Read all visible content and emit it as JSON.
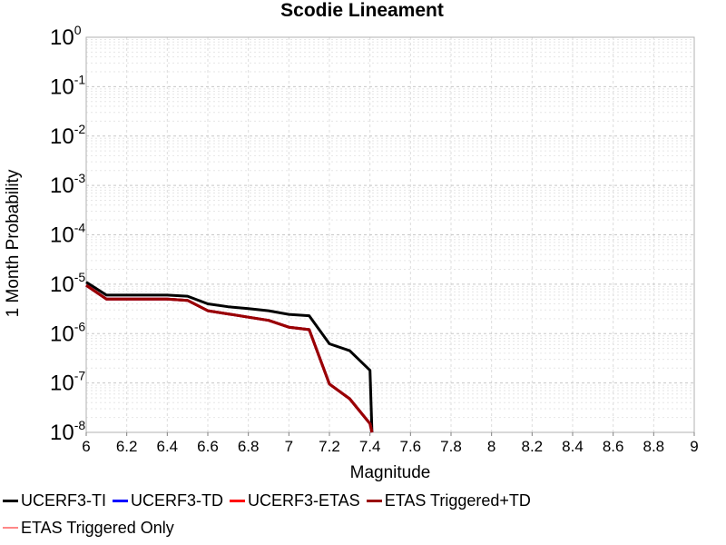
{
  "chart_data": {
    "type": "line",
    "title": "Scodie Lineament",
    "xlabel": "Magnitude",
    "ylabel": "1 Month Probability",
    "xlim": [
      6,
      9
    ],
    "ylim": [
      1e-08,
      1
    ],
    "y_scale": "log",
    "grid": true,
    "legend_position": "bottom",
    "x_ticks": [
      "6",
      "6.2",
      "6.4",
      "6.6",
      "6.8",
      "7",
      "7.2",
      "7.4",
      "7.6",
      "7.8",
      "8",
      "8.2",
      "8.4",
      "8.6",
      "8.8",
      "9"
    ],
    "y_ticks": [
      {
        "base": "10",
        "exp": "0"
      },
      {
        "base": "10",
        "exp": "-1"
      },
      {
        "base": "10",
        "exp": "-2"
      },
      {
        "base": "10",
        "exp": "-3"
      },
      {
        "base": "10",
        "exp": "-4"
      },
      {
        "base": "10",
        "exp": "-5"
      },
      {
        "base": "10",
        "exp": "-6"
      },
      {
        "base": "10",
        "exp": "-7"
      },
      {
        "base": "10",
        "exp": "-8"
      }
    ],
    "series": [
      {
        "name": "UCERF3-TI",
        "color": "#000000",
        "x": [
          6.0,
          6.1,
          6.2,
          6.3,
          6.4,
          6.5,
          6.6,
          6.7,
          6.8,
          6.9,
          7.0,
          7.1,
          7.2,
          7.3,
          7.4,
          7.41
        ],
        "y": [
          1.1e-05,
          6e-06,
          6e-06,
          6e-06,
          6e-06,
          5.7e-06,
          4e-06,
          3.5e-06,
          3.2e-06,
          2.9e-06,
          2.45e-06,
          2.3e-06,
          6.2e-07,
          4.5e-07,
          1.8e-07,
          1e-08
        ]
      },
      {
        "name": "UCERF3-TD",
        "color": "#0000ff",
        "x": [
          6.0,
          6.1,
          6.2,
          6.3,
          6.4,
          6.5,
          6.6,
          6.7,
          6.8,
          6.9,
          7.0,
          7.1,
          7.2,
          7.3,
          7.4,
          7.41
        ],
        "y": [
          9.5e-06,
          5e-06,
          5e-06,
          5e-06,
          5e-06,
          4.7e-06,
          2.9e-06,
          2.5e-06,
          2.15e-06,
          1.85e-06,
          1.35e-06,
          1.2e-06,
          9.5e-08,
          4.8e-08,
          1.5e-08,
          1e-08
        ]
      },
      {
        "name": "UCERF3-ETAS",
        "color": "#ff0000",
        "x": [
          6.0,
          6.1,
          6.2,
          6.3,
          6.4,
          6.5,
          6.6,
          6.7,
          6.8,
          6.9,
          7.0,
          7.1,
          7.2,
          7.3,
          7.4,
          7.41
        ],
        "y": [
          9.5e-06,
          5e-06,
          5e-06,
          5e-06,
          5e-06,
          4.7e-06,
          2.9e-06,
          2.5e-06,
          2.15e-06,
          1.85e-06,
          1.35e-06,
          1.2e-06,
          9.5e-08,
          4.8e-08,
          1.5e-08,
          1e-08
        ]
      },
      {
        "name": "ETAS Triggered+TD",
        "color": "#990000",
        "x": [
          6.0,
          6.1,
          6.2,
          6.3,
          6.4,
          6.5,
          6.6,
          6.7,
          6.8,
          6.9,
          7.0,
          7.1,
          7.2,
          7.3,
          7.4,
          7.41
        ],
        "y": [
          9.5e-06,
          5e-06,
          5e-06,
          5e-06,
          5e-06,
          4.7e-06,
          2.9e-06,
          2.5e-06,
          2.15e-06,
          1.85e-06,
          1.35e-06,
          1.2e-06,
          9.5e-08,
          4.8e-08,
          1.5e-08,
          1e-08
        ]
      },
      {
        "name": "ETAS Triggered Only",
        "color": "#ff8888",
        "x": [],
        "y": []
      }
    ]
  }
}
